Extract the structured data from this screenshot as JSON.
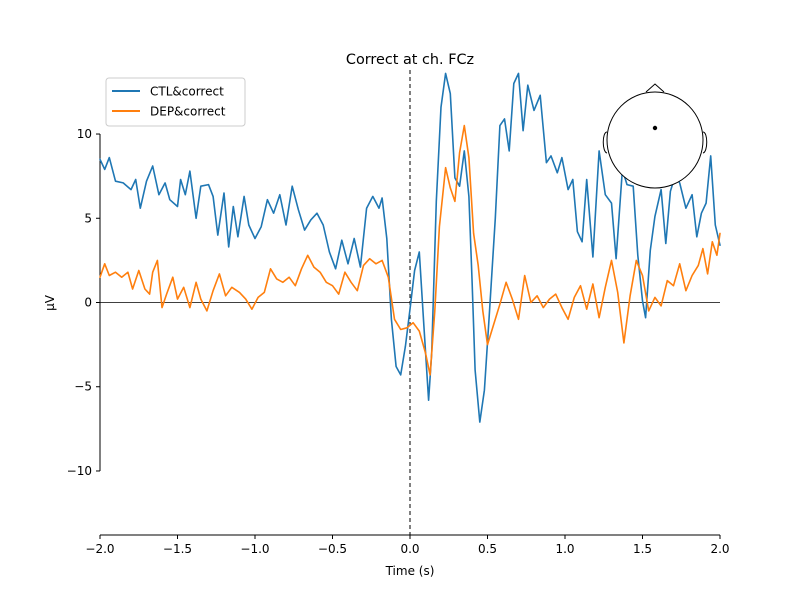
{
  "chart_data": {
    "type": "line",
    "title": "Correct at ch. FCz",
    "xlabel": "Time (s)",
    "ylabel": "µV",
    "xlim": [
      -2.0,
      2.0
    ],
    "ylim": [
      -13.8,
      13.8
    ],
    "x_ticks": [
      -2.0,
      -1.5,
      -1.0,
      -0.5,
      0.0,
      0.5,
      1.0,
      1.5,
      2.0
    ],
    "x_tick_labels": [
      "−2.0",
      "−1.5",
      "−1.0",
      "−0.5",
      "0.0",
      "0.5",
      "1.0",
      "1.5",
      "2.0"
    ],
    "y_ticks": [
      -10,
      -5,
      0,
      5,
      10
    ],
    "y_tick_labels": [
      "−10",
      "−5",
      "0",
      "5",
      "10"
    ],
    "grid": false,
    "legend_position": "top-left",
    "vline_x": 0.0,
    "hline_y": 0.0,
    "inset": "sensor-head-topomap",
    "series": [
      {
        "name": "CTL&correct",
        "color": "#1f77b4",
        "points": [
          [
            -2.0,
            8.5
          ],
          [
            -1.97,
            7.9
          ],
          [
            -1.94,
            8.6
          ],
          [
            -1.9,
            7.2
          ],
          [
            -1.85,
            7.1
          ],
          [
            -1.8,
            6.7
          ],
          [
            -1.77,
            7.3
          ],
          [
            -1.74,
            5.6
          ],
          [
            -1.7,
            7.2
          ],
          [
            -1.66,
            8.1
          ],
          [
            -1.62,
            6.4
          ],
          [
            -1.58,
            7.1
          ],
          [
            -1.55,
            6.1
          ],
          [
            -1.5,
            5.7
          ],
          [
            -1.48,
            7.3
          ],
          [
            -1.45,
            6.4
          ],
          [
            -1.42,
            7.8
          ],
          [
            -1.38,
            5.0
          ],
          [
            -1.35,
            6.9
          ],
          [
            -1.3,
            7.0
          ],
          [
            -1.27,
            6.3
          ],
          [
            -1.24,
            4.0
          ],
          [
            -1.2,
            6.5
          ],
          [
            -1.17,
            3.3
          ],
          [
            -1.14,
            5.7
          ],
          [
            -1.11,
            3.9
          ],
          [
            -1.07,
            6.3
          ],
          [
            -1.04,
            4.6
          ],
          [
            -1.0,
            3.8
          ],
          [
            -0.96,
            4.5
          ],
          [
            -0.92,
            6.1
          ],
          [
            -0.88,
            5.3
          ],
          [
            -0.84,
            6.4
          ],
          [
            -0.8,
            4.6
          ],
          [
            -0.76,
            6.9
          ],
          [
            -0.72,
            5.5
          ],
          [
            -0.68,
            4.3
          ],
          [
            -0.64,
            4.9
          ],
          [
            -0.6,
            5.3
          ],
          [
            -0.56,
            4.6
          ],
          [
            -0.52,
            3.0
          ],
          [
            -0.48,
            2.0
          ],
          [
            -0.44,
            3.7
          ],
          [
            -0.4,
            2.3
          ],
          [
            -0.36,
            3.8
          ],
          [
            -0.32,
            2.1
          ],
          [
            -0.28,
            5.6
          ],
          [
            -0.24,
            6.3
          ],
          [
            -0.2,
            5.6
          ],
          [
            -0.18,
            6.2
          ],
          [
            -0.15,
            3.8
          ],
          [
            -0.12,
            -1.0
          ],
          [
            -0.09,
            -3.8
          ],
          [
            -0.06,
            -4.3
          ],
          [
            -0.03,
            -2.6
          ],
          [
            0.0,
            -0.4
          ],
          [
            0.03,
            1.9
          ],
          [
            0.06,
            3.0
          ],
          [
            0.09,
            -1.4
          ],
          [
            0.12,
            -5.8
          ],
          [
            0.14,
            -3.0
          ],
          [
            0.17,
            6.0
          ],
          [
            0.2,
            11.6
          ],
          [
            0.23,
            13.6
          ],
          [
            0.26,
            12.4
          ],
          [
            0.29,
            7.4
          ],
          [
            0.32,
            6.9
          ],
          [
            0.35,
            9.0
          ],
          [
            0.38,
            6.3
          ],
          [
            0.4,
            1.4
          ],
          [
            0.42,
            -4.0
          ],
          [
            0.45,
            -7.1
          ],
          [
            0.48,
            -5.2
          ],
          [
            0.51,
            -1.0
          ],
          [
            0.55,
            5.0
          ],
          [
            0.58,
            10.5
          ],
          [
            0.61,
            10.9
          ],
          [
            0.64,
            9.0
          ],
          [
            0.67,
            13.0
          ],
          [
            0.7,
            13.6
          ],
          [
            0.73,
            10.2
          ],
          [
            0.76,
            12.9
          ],
          [
            0.8,
            11.4
          ],
          [
            0.84,
            12.3
          ],
          [
            0.88,
            8.3
          ],
          [
            0.91,
            8.7
          ],
          [
            0.95,
            7.7
          ],
          [
            0.98,
            8.6
          ],
          [
            1.02,
            6.7
          ],
          [
            1.05,
            7.3
          ],
          [
            1.08,
            4.2
          ],
          [
            1.11,
            3.6
          ],
          [
            1.14,
            7.3
          ],
          [
            1.18,
            2.7
          ],
          [
            1.22,
            9.0
          ],
          [
            1.26,
            6.4
          ],
          [
            1.3,
            5.9
          ],
          [
            1.33,
            2.6
          ],
          [
            1.37,
            7.9
          ],
          [
            1.4,
            7.0
          ],
          [
            1.44,
            6.9
          ],
          [
            1.47,
            2.8
          ],
          [
            1.5,
            0.1
          ],
          [
            1.52,
            -0.9
          ],
          [
            1.55,
            3.1
          ],
          [
            1.58,
            5.1
          ],
          [
            1.62,
            6.7
          ],
          [
            1.65,
            3.5
          ],
          [
            1.68,
            6.6
          ],
          [
            1.71,
            7.5
          ],
          [
            1.74,
            7.1
          ],
          [
            1.78,
            5.6
          ],
          [
            1.82,
            6.4
          ],
          [
            1.85,
            3.9
          ],
          [
            1.88,
            5.3
          ],
          [
            1.91,
            5.9
          ],
          [
            1.94,
            8.7
          ],
          [
            1.97,
            4.6
          ],
          [
            2.0,
            3.4
          ]
        ]
      },
      {
        "name": "DEP&correct",
        "color": "#ff7f0e",
        "points": [
          [
            -2.0,
            1.5
          ],
          [
            -1.97,
            2.3
          ],
          [
            -1.94,
            1.6
          ],
          [
            -1.9,
            1.8
          ],
          [
            -1.86,
            1.5
          ],
          [
            -1.82,
            1.8
          ],
          [
            -1.79,
            0.8
          ],
          [
            -1.75,
            1.9
          ],
          [
            -1.71,
            0.8
          ],
          [
            -1.68,
            0.5
          ],
          [
            -1.66,
            1.8
          ],
          [
            -1.63,
            2.5
          ],
          [
            -1.6,
            -0.3
          ],
          [
            -1.57,
            0.5
          ],
          [
            -1.53,
            1.5
          ],
          [
            -1.5,
            0.2
          ],
          [
            -1.46,
            0.9
          ],
          [
            -1.42,
            -0.3
          ],
          [
            -1.38,
            1.2
          ],
          [
            -1.35,
            0.2
          ],
          [
            -1.31,
            -0.5
          ],
          [
            -1.27,
            0.7
          ],
          [
            -1.23,
            1.7
          ],
          [
            -1.19,
            0.4
          ],
          [
            -1.15,
            0.9
          ],
          [
            -1.1,
            0.6
          ],
          [
            -1.06,
            0.2
          ],
          [
            -1.02,
            -0.4
          ],
          [
            -0.98,
            0.3
          ],
          [
            -0.94,
            0.6
          ],
          [
            -0.9,
            2.0
          ],
          [
            -0.86,
            1.4
          ],
          [
            -0.82,
            1.2
          ],
          [
            -0.78,
            1.5
          ],
          [
            -0.74,
            1.0
          ],
          [
            -0.7,
            2.0
          ],
          [
            -0.66,
            2.8
          ],
          [
            -0.62,
            2.1
          ],
          [
            -0.58,
            1.8
          ],
          [
            -0.54,
            1.2
          ],
          [
            -0.5,
            1.0
          ],
          [
            -0.46,
            0.5
          ],
          [
            -0.42,
            1.8
          ],
          [
            -0.38,
            1.2
          ],
          [
            -0.34,
            0.7
          ],
          [
            -0.3,
            2.2
          ],
          [
            -0.26,
            2.6
          ],
          [
            -0.22,
            2.3
          ],
          [
            -0.18,
            2.5
          ],
          [
            -0.14,
            1.5
          ],
          [
            -0.1,
            -1.0
          ],
          [
            -0.06,
            -1.6
          ],
          [
            -0.02,
            -1.5
          ],
          [
            0.02,
            -1.2
          ],
          [
            0.06,
            -1.7
          ],
          [
            0.1,
            -3.0
          ],
          [
            0.13,
            -4.3
          ],
          [
            0.16,
            -0.5
          ],
          [
            0.19,
            4.5
          ],
          [
            0.23,
            8.0
          ],
          [
            0.26,
            6.8
          ],
          [
            0.29,
            6.0
          ],
          [
            0.32,
            8.9
          ],
          [
            0.35,
            10.5
          ],
          [
            0.38,
            8.6
          ],
          [
            0.41,
            4.1
          ],
          [
            0.44,
            2.2
          ],
          [
            0.47,
            -0.5
          ],
          [
            0.5,
            -2.5
          ],
          [
            0.54,
            -1.3
          ],
          [
            0.58,
            -0.1
          ],
          [
            0.62,
            1.2
          ],
          [
            0.66,
            0.2
          ],
          [
            0.7,
            -1.0
          ],
          [
            0.74,
            1.6
          ],
          [
            0.78,
            0.0
          ],
          [
            0.82,
            0.4
          ],
          [
            0.86,
            -0.3
          ],
          [
            0.9,
            0.2
          ],
          [
            0.94,
            0.5
          ],
          [
            0.98,
            -0.3
          ],
          [
            1.02,
            -1.0
          ],
          [
            1.06,
            0.3
          ],
          [
            1.1,
            1.0
          ],
          [
            1.14,
            -0.4
          ],
          [
            1.18,
            1.1
          ],
          [
            1.22,
            -0.9
          ],
          [
            1.26,
            0.9
          ],
          [
            1.3,
            2.5
          ],
          [
            1.34,
            0.6
          ],
          [
            1.38,
            -2.4
          ],
          [
            1.42,
            0.4
          ],
          [
            1.46,
            2.5
          ],
          [
            1.5,
            1.6
          ],
          [
            1.54,
            -0.5
          ],
          [
            1.58,
            0.3
          ],
          [
            1.62,
            -0.2
          ],
          [
            1.66,
            1.3
          ],
          [
            1.7,
            1.0
          ],
          [
            1.74,
            2.3
          ],
          [
            1.78,
            0.7
          ],
          [
            1.82,
            1.6
          ],
          [
            1.86,
            2.2
          ],
          [
            1.89,
            3.2
          ],
          [
            1.92,
            1.7
          ],
          [
            1.95,
            3.6
          ],
          [
            1.98,
            2.8
          ],
          [
            2.0,
            4.1
          ]
        ]
      }
    ]
  }
}
